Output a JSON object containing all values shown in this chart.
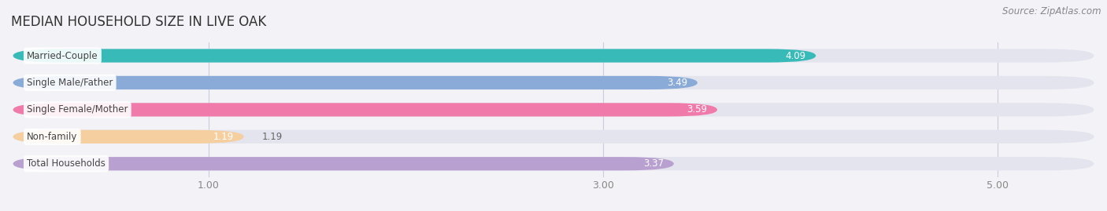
{
  "title": "MEDIAN HOUSEHOLD SIZE IN LIVE OAK",
  "source": "Source: ZipAtlas.com",
  "categories": [
    "Married-Couple",
    "Single Male/Father",
    "Single Female/Mother",
    "Non-family",
    "Total Households"
  ],
  "values": [
    4.09,
    3.49,
    3.59,
    1.19,
    3.37
  ],
  "bar_colors": [
    "#38bbb8",
    "#8aaad8",
    "#f07aaa",
    "#f5cfa0",
    "#b8a0d0"
  ],
  "xlim": [
    0.0,
    5.5
  ],
  "xdata_min": 0.0,
  "xdata_max": 5.5,
  "xticks": [
    1.0,
    3.0,
    5.0
  ],
  "xtick_labels": [
    "1.00",
    "3.00",
    "5.00"
  ],
  "background_color": "#f2f2f7",
  "bar_bg_color": "#e4e4ee",
  "title_fontsize": 12,
  "label_fontsize": 8.5,
  "value_fontsize": 8.5,
  "source_fontsize": 8.5
}
